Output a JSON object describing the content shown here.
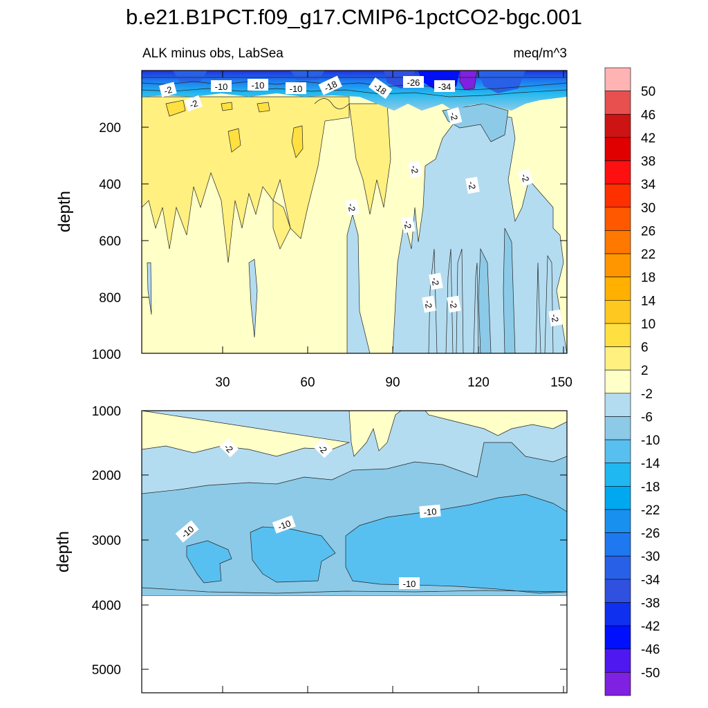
{
  "chart_data": {
    "type": "contour",
    "title": "b.e21.B1PCT.f09_g17.CMIP6-1pctCO2-bgc.001",
    "variable_label": "ALK minus obs, LabSea",
    "units_label": "meq/m^3",
    "colorbar": {
      "levels": [
        "50",
        "46",
        "42",
        "38",
        "34",
        "30",
        "26",
        "22",
        "18",
        "14",
        "10",
        "6",
        "2",
        "-2",
        "-6",
        "-10",
        "-14",
        "-18",
        "-22",
        "-26",
        "-30",
        "-34",
        "-38",
        "-42",
        "-46",
        "-50"
      ],
      "colors": [
        "#ffb3b3",
        "#e85050",
        "#cc1414",
        "#e00000",
        "#ff1010",
        "#ff3000",
        "#ff5800",
        "#ff7800",
        "#ff9600",
        "#ffb000",
        "#ffc820",
        "#ffe040",
        "#fff080",
        "#ffffc8",
        "#b4dcf0",
        "#8ccae8",
        "#58c0f0",
        "#20b8f0",
        "#00a8f0",
        "#1890f0",
        "#1e78f0",
        "#2860e8",
        "#3050e0",
        "#1030f0",
        "#0010ff",
        "#5018f0",
        "#8020e0"
      ]
    },
    "panels": [
      {
        "id": "upper",
        "ylabel": "depth",
        "y_ticks": [
          "200",
          "400",
          "600",
          "800",
          "1000"
        ],
        "x_ticks": [
          "30",
          "60",
          "90",
          "120",
          "150"
        ],
        "ylim": [
          0,
          1000
        ],
        "xlim": [
          1,
          151
        ],
        "contour_labels": [
          "-2",
          "-2",
          "-10",
          "-10",
          "-10",
          "-18",
          "-18",
          "-26",
          "-34",
          "-2",
          "-2",
          "-2",
          "-2",
          "-2",
          "-2",
          "-2",
          "-2",
          "-2",
          "-2"
        ]
      },
      {
        "id": "lower",
        "ylabel": "depth",
        "y_ticks": [
          "1000",
          "2000",
          "3000",
          "4000",
          "5000"
        ],
        "ylim": [
          1000,
          5400
        ],
        "xlim": [
          1,
          151
        ],
        "contour_labels": [
          "-2",
          "-2",
          "-10",
          "-10",
          "-10",
          "-10"
        ]
      }
    ]
  }
}
